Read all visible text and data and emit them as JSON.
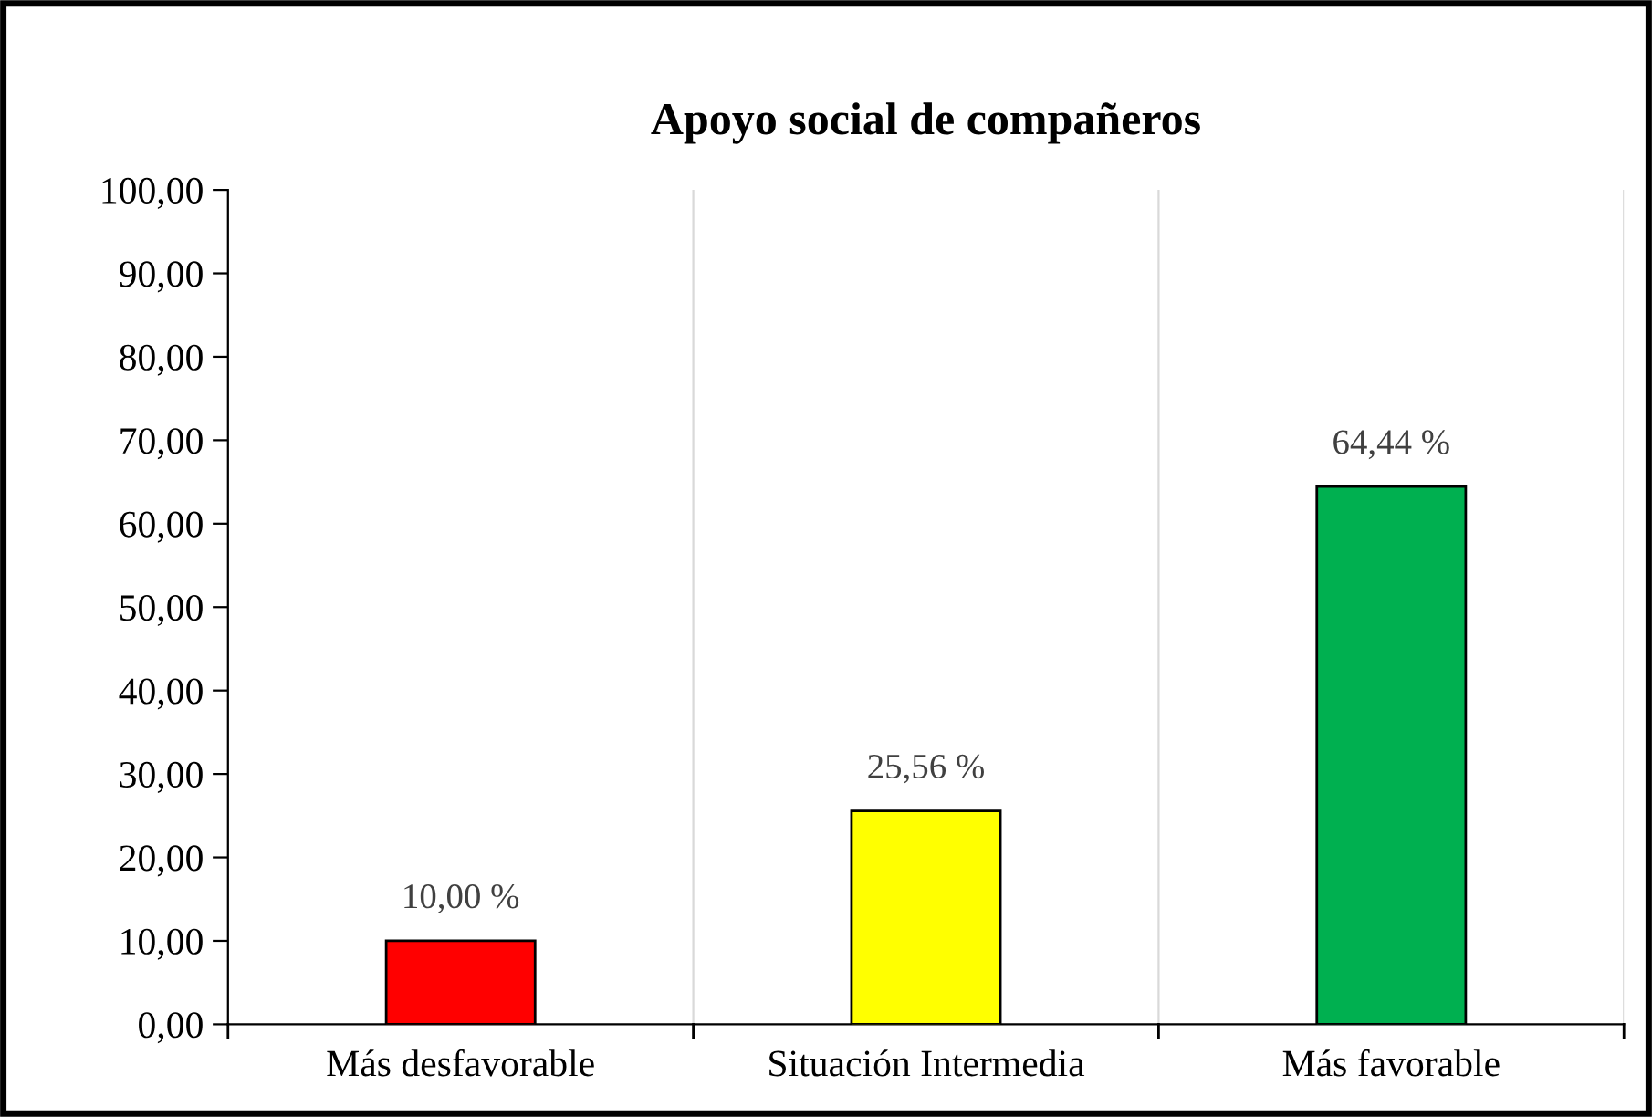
{
  "chart_data": {
    "type": "bar",
    "title": "Apoyo social de compañeros",
    "categories": [
      "Más desfavorable",
      "Situación Intermedia",
      "Más favorable"
    ],
    "values": [
      10.0,
      25.56,
      64.44
    ],
    "colors": [
      "#ff0000",
      "#ffff00",
      "#00b050"
    ],
    "value_labels": [
      "10,00 %",
      "25,56 %",
      "64,44 %"
    ],
    "ylim": [
      0,
      100
    ],
    "yticks": [
      {
        "value": 0,
        "label": "0,00"
      },
      {
        "value": 10,
        "label": "10,00"
      },
      {
        "value": 20,
        "label": "20,00"
      },
      {
        "value": 30,
        "label": "30,00"
      },
      {
        "value": 40,
        "label": "40,00"
      },
      {
        "value": 50,
        "label": "50,00"
      },
      {
        "value": 60,
        "label": "60,00"
      },
      {
        "value": 70,
        "label": "70,00"
      },
      {
        "value": 80,
        "label": "80,00"
      },
      {
        "value": 90,
        "label": "90,00"
      },
      {
        "value": 100,
        "label": "100,00"
      }
    ],
    "grid": "x",
    "legend": false
  }
}
